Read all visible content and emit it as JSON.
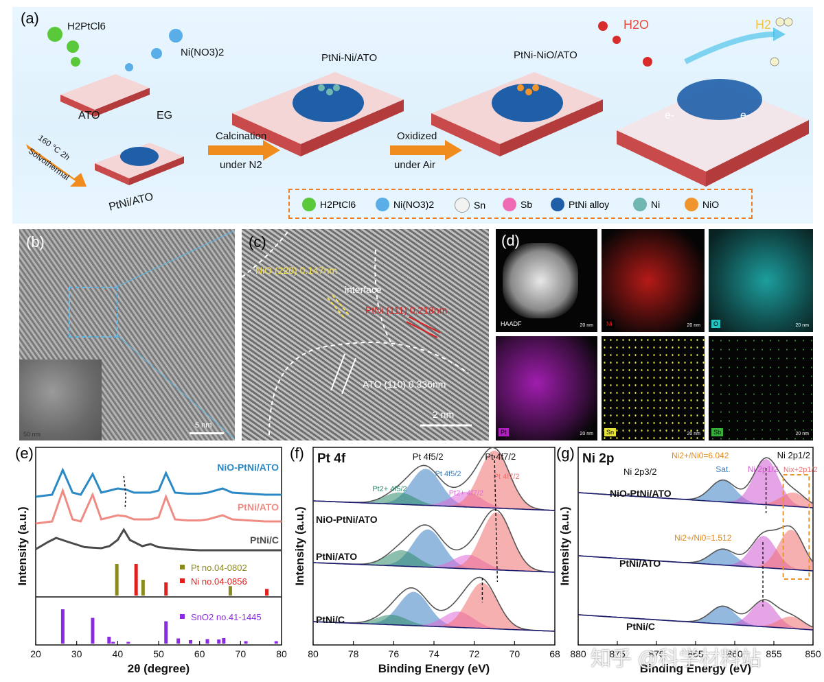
{
  "panel_labels": {
    "a": "(a)",
    "b": "(b)",
    "c": "(c)",
    "d": "(d)",
    "e": "(e)",
    "f": "(f)",
    "g": "(g)"
  },
  "schematic": {
    "reagents": {
      "pt_salt": "H2PtCl6",
      "ni_salt": "Ni(NO3)2",
      "ato": "ATO",
      "eg": "EG"
    },
    "solvothermal": {
      "temp": "160 °C  2h",
      "label": "Solvothermal"
    },
    "stage_labels": [
      "PtNi/ATO",
      "PtNi-Ni/ATO",
      "PtNi-NiO/ATO"
    ],
    "arrow1": {
      "top": "Calcination",
      "bottom": "under N2"
    },
    "arrow2": {
      "top": "Oxidized",
      "bottom": "under Air"
    },
    "reaction": {
      "in": "H2O",
      "out": "H2",
      "electron": "e-"
    },
    "legend": [
      "H2PtCl6",
      "Ni(NO3)2",
      "Sn",
      "Sb",
      "PtNi alloy",
      "Ni",
      "NiO"
    ],
    "legend_colors": [
      "#59c93a",
      "#5aaee8",
      "#f2f2f2",
      "#ef6bb4",
      "#1f5fa8",
      "#6fb7b0",
      "#f0952e"
    ]
  },
  "tem_b": {
    "scale": "5 nm",
    "inset_scale": "50 nm"
  },
  "hrtem_c": {
    "nio": "NiO (220) 0.147nm",
    "interface": "interface",
    "ptni": "PtNi (111) 0.218nm",
    "ato": "ATO (110) 0.336nm",
    "scale": "2 nm"
  },
  "eds_d": {
    "maps": [
      {
        "label": "HAADF",
        "color": "#ffffff"
      },
      {
        "label": "Ni",
        "color": "#e0201c"
      },
      {
        "label": "O",
        "color": "#23c4c4"
      },
      {
        "label": "Pt",
        "color": "#b020c0"
      },
      {
        "label": "Sn",
        "color": "#e4e43a"
      },
      {
        "label": "Sb",
        "color": "#35b03a"
      }
    ],
    "scale": "20 nm"
  },
  "chart_data": [
    {
      "type": "line",
      "panel": "e",
      "xlabel": "2θ (degree)",
      "ylabel": "Intensity (a.u.)",
      "xlim": [
        20,
        80
      ],
      "xticks": [
        20,
        30,
        40,
        50,
        60,
        70,
        80
      ],
      "series": [
        {
          "name": "NiO-PtNi/ATO",
          "color": "#2a88c4",
          "x": [
            20,
            24,
            26.6,
            29,
            31,
            33.9,
            36,
            38,
            40,
            42,
            44,
            46,
            48,
            50,
            51.8,
            54,
            57,
            60,
            62,
            65.6,
            68,
            72,
            76,
            80
          ],
          "y": [
            0.56,
            0.58,
            0.82,
            0.6,
            0.58,
            0.78,
            0.6,
            0.62,
            0.64,
            0.63,
            0.6,
            0.6,
            0.6,
            0.62,
            0.79,
            0.6,
            0.59,
            0.59,
            0.6,
            0.64,
            0.6,
            0.59,
            0.58,
            0.58
          ]
        },
        {
          "name": "PtNi/ATO",
          "color": "#ef8b82",
          "x": [
            20,
            24,
            26.6,
            29,
            31,
            33.9,
            36,
            38,
            40,
            42,
            44,
            46,
            48,
            50,
            51.8,
            54,
            57,
            60,
            62,
            65.6,
            68,
            72,
            76,
            80
          ],
          "y": [
            0.3,
            0.32,
            0.62,
            0.34,
            0.32,
            0.58,
            0.34,
            0.36,
            0.38,
            0.37,
            0.34,
            0.34,
            0.34,
            0.36,
            0.56,
            0.34,
            0.33,
            0.33,
            0.34,
            0.38,
            0.34,
            0.33,
            0.32,
            0.32
          ]
        },
        {
          "name": "PtNi/C",
          "color": "#4a4a4a",
          "x": [
            20,
            23,
            25,
            28,
            32,
            36,
            38,
            40,
            41.5,
            43,
            46,
            48,
            50,
            55,
            60,
            65,
            70,
            75,
            80
          ],
          "y": [
            0.05,
            0.12,
            0.16,
            0.12,
            0.07,
            0.06,
            0.08,
            0.14,
            0.24,
            0.14,
            0.08,
            0.1,
            0.07,
            0.05,
            0.04,
            0.04,
            0.04,
            0.04,
            0.04
          ]
        }
      ],
      "references": [
        {
          "name": "Pt no.04-0802",
          "color": "#8a8a1e",
          "x": [
            39.8,
            46.2,
            67.5
          ],
          "y": [
            1.0,
            0.5,
            0.3
          ]
        },
        {
          "name": "Ni no.04-0856",
          "color": "#e0201c",
          "x": [
            44.5,
            51.8,
            76.4
          ],
          "y": [
            1.0,
            0.42,
            0.21
          ]
        },
        {
          "name": "SnO2 no.41-1445",
          "color": "#8a2be2",
          "x": [
            26.6,
            33.9,
            37.9,
            38.9,
            42.6,
            51.8,
            54.8,
            57.8,
            61.9,
            64.7,
            65.9,
            71.3,
            78.7
          ],
          "y": [
            1.0,
            0.75,
            0.2,
            0.05,
            0.05,
            0.65,
            0.15,
            0.1,
            0.13,
            0.12,
            0.16,
            0.07,
            0.07
          ]
        }
      ]
    },
    {
      "type": "line",
      "panel": "f",
      "title": "Pt 4f",
      "xlabel": "Binding Energy (eV)",
      "ylabel": "Intensity (a.u.)",
      "xlim": [
        80,
        68
      ],
      "xticks": [
        80,
        78,
        76,
        74,
        72,
        70,
        68
      ],
      "peak_labels": [
        "Pt 4f5/2",
        "Pt 4f7/2",
        "Pt2+ 4f5/2",
        "Pt2+ 4f7/2"
      ],
      "samples": [
        {
          "name": "NiO-PtNi/ATO",
          "peaks": [
            {
              "label": "Pt 4f5/2",
              "center": 74.4,
              "height": 0.92,
              "color": "#3b7fc4"
            },
            {
              "label": "Pt2+ 4f5/2",
              "center": 75.7,
              "height": 0.3,
              "color": "#2e8b6a"
            },
            {
              "label": "Pt2+ 4f7/2",
              "center": 72.4,
              "height": 0.38,
              "color": "#e06ad8"
            },
            {
              "label": "Pt 4f7/2",
              "center": 71.0,
              "height": 1.45,
              "color": "#f07070"
            }
          ]
        },
        {
          "name": "PtNi/ATO",
          "peaks": [
            {
              "label": "Pt 4f5/2",
              "center": 74.3,
              "height": 0.95,
              "color": "#3b7fc4"
            },
            {
              "label": "Pt2+ 4f5/2",
              "center": 75.6,
              "height": 0.4,
              "color": "#2e8b6a"
            },
            {
              "label": "Pt2+ 4f7/2",
              "center": 72.3,
              "height": 0.35,
              "color": "#e06ad8"
            },
            {
              "label": "Pt 4f7/2",
              "center": 70.9,
              "height": 1.45,
              "color": "#f07070"
            }
          ]
        },
        {
          "name": "PtNi/C",
          "peaks": [
            {
              "label": "Pt 4f5/2",
              "center": 75.0,
              "height": 0.85,
              "color": "#3b7fc4"
            },
            {
              "label": "Pt2+ 4f5/2",
              "center": 76.1,
              "height": 0.25,
              "color": "#2e8b6a"
            },
            {
              "label": "Pt2+ 4f7/2",
              "center": 72.8,
              "height": 0.4,
              "color": "#e06ad8"
            },
            {
              "label": "Pt 4f7/2",
              "center": 71.6,
              "height": 1.15,
              "color": "#f07070"
            }
          ]
        }
      ]
    },
    {
      "type": "line",
      "panel": "g",
      "title": "Ni 2p",
      "xlabel": "Binding Energy (eV)",
      "ylabel": "Intensity (a.u.)",
      "xlim": [
        880,
        850
      ],
      "xticks": [
        880,
        875,
        870,
        865,
        860,
        855,
        850
      ],
      "peak_labels": [
        "Ni 2p3/2",
        "Ni 2p1/2",
        "Sat.",
        "Ni 2p1/2",
        "Nix+2p1/2"
      ],
      "ratios": [
        "Ni2+/Ni0=6.042",
        "Ni2+/Ni0=1.512"
      ],
      "samples": [
        {
          "name": "NiO-PtNi/ATO",
          "peaks": [
            {
              "label": "Sat.",
              "center": 861.5,
              "height": 0.55,
              "color": "#3b7fc4"
            },
            {
              "label": "Ni 2p1/2",
              "center": 856.0,
              "height": 1.15,
              "color": "#d05ad0"
            },
            {
              "label": "Nix+2p1/2",
              "center": 852.5,
              "height": 0.35,
              "color": "#f07070"
            }
          ]
        },
        {
          "name": "PtNi/ATO",
          "peaks": [
            {
              "label": "Sat.",
              "center": 861.5,
              "height": 0.4,
              "color": "#3b7fc4"
            },
            {
              "label": "Ni 2p1/2",
              "center": 856.3,
              "height": 0.8,
              "color": "#d05ad0"
            },
            {
              "label": "Nix+2p1/2",
              "center": 852.8,
              "height": 1.0,
              "color": "#f07070"
            }
          ]
        },
        {
          "name": "PtNi/C",
          "peaks": [
            {
              "label": "Sat.",
              "center": 861.5,
              "height": 0.45,
              "color": "#3b7fc4"
            },
            {
              "label": "Ni 2p1/2",
              "center": 856.3,
              "height": 0.65,
              "color": "#d05ad0"
            },
            {
              "label": "Nix+2p1/2",
              "center": 852.8,
              "height": 0.3,
              "color": "#f07070"
            }
          ]
        }
      ]
    }
  ],
  "watermark": "知乎 @科学材料站"
}
